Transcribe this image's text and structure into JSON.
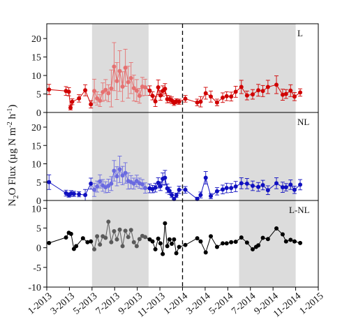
{
  "chart_data": {
    "type": "line",
    "ylabel": "N2O Flux (µg N m-2 h-1)",
    "ylabel_parts": {
      "main": "N",
      "sub": "2",
      "rest": "O Flux (µg N m",
      "sup1": "-2",
      "mid": " h",
      "sup2": "-1",
      "end": ")"
    },
    "x_ticks": [
      "1-2013",
      "3-2013",
      "5-2013",
      "7-2013",
      "9-2013",
      "11-2013",
      "1-2014",
      "3-2014",
      "5-2014",
      "7-2014",
      "9-2014",
      "11-2014",
      "1-2015"
    ],
    "shaded_periods": [
      [
        4,
        9
      ],
      [
        17,
        22
      ]
    ],
    "divider_x": 12,
    "panels": [
      {
        "label": "L",
        "ylim": [
          0,
          24
        ],
        "yticks": [
          "0",
          "5",
          "10",
          "15",
          "20"
        ],
        "ytick_values": [
          0,
          5,
          10,
          15,
          20
        ],
        "colors": {
          "dark": "#d00000",
          "light": "#e67070"
        },
        "light_range": [
          4,
          9
        ],
        "series": [
          {
            "x": 0.2,
            "y": 6.2,
            "e": 1.4
          },
          {
            "x": 1.7,
            "y": 5.8,
            "e": 1.2
          },
          {
            "x": 1.95,
            "y": 5.6,
            "e": 1.1
          },
          {
            "x": 2.1,
            "y": 1.3,
            "e": 0.6
          },
          {
            "x": 2.25,
            "y": 2.9,
            "e": 0.8
          },
          {
            "x": 2.85,
            "y": 3.8,
            "e": 1.0
          },
          {
            "x": 3.4,
            "y": 6.0,
            "e": 1.5
          },
          {
            "x": 3.9,
            "y": 2.2,
            "e": 1.0
          },
          {
            "x": 4.2,
            "y": 5.8,
            "e": 3.2
          },
          {
            "x": 4.45,
            "y": 3.8,
            "e": 1.8
          },
          {
            "x": 4.7,
            "y": 3.2,
            "e": 1.6
          },
          {
            "x": 4.95,
            "y": 5.5,
            "e": 2.5
          },
          {
            "x": 5.2,
            "y": 6.1,
            "e": 2.8
          },
          {
            "x": 5.45,
            "y": 5.2,
            "e": 2.3
          },
          {
            "x": 5.7,
            "y": 6.5,
            "e": 5.0
          },
          {
            "x": 5.95,
            "y": 12.4,
            "e": 6.5
          },
          {
            "x": 6.2,
            "y": 8.5,
            "e": 5.0
          },
          {
            "x": 6.45,
            "y": 11.2,
            "e": 5.5
          },
          {
            "x": 6.7,
            "y": 7.0,
            "e": 4.0
          },
          {
            "x": 6.95,
            "y": 12.1,
            "e": 5.0
          },
          {
            "x": 7.2,
            "y": 8.2,
            "e": 4.3
          },
          {
            "x": 7.45,
            "y": 9.3,
            "e": 4.2
          },
          {
            "x": 7.7,
            "y": 6.6,
            "e": 3.5
          },
          {
            "x": 7.95,
            "y": 5.9,
            "e": 3.0
          },
          {
            "x": 8.2,
            "y": 4.5,
            "e": 2.0
          },
          {
            "x": 8.45,
            "y": 7.0,
            "e": 2.5
          },
          {
            "x": 8.7,
            "y": 6.8,
            "e": 2.2
          },
          {
            "x": 9.1,
            "y": 5.9,
            "e": 1.3
          },
          {
            "x": 9.35,
            "y": 4.5,
            "e": 1.1
          },
          {
            "x": 9.6,
            "y": 3.0,
            "e": 1.4
          },
          {
            "x": 9.85,
            "y": 6.8,
            "e": 2.0
          },
          {
            "x": 10.05,
            "y": 4.6,
            "e": 1.3
          },
          {
            "x": 10.25,
            "y": 5.8,
            "e": 1.4
          },
          {
            "x": 10.45,
            "y": 6.4,
            "e": 1.4
          },
          {
            "x": 10.65,
            "y": 3.6,
            "e": 1.0
          },
          {
            "x": 10.85,
            "y": 3.6,
            "e": 0.9
          },
          {
            "x": 11.05,
            "y": 3.3,
            "e": 0.9
          },
          {
            "x": 11.25,
            "y": 2.6,
            "e": 0.7
          },
          {
            "x": 11.45,
            "y": 3.0,
            "e": 0.7
          },
          {
            "x": 11.7,
            "y": 2.9,
            "e": 0.7
          },
          {
            "x": 12.25,
            "y": 3.7,
            "e": 0.9
          },
          {
            "x": 13.3,
            "y": 2.7,
            "e": 0.9
          },
          {
            "x": 13.6,
            "y": 2.9,
            "e": 1.4
          },
          {
            "x": 14.05,
            "y": 5.2,
            "e": 1.6
          },
          {
            "x": 14.5,
            "y": 4.3,
            "e": 1.5
          },
          {
            "x": 15.05,
            "y": 2.7,
            "e": 0.9
          },
          {
            "x": 15.55,
            "y": 4.0,
            "e": 1.3
          },
          {
            "x": 15.9,
            "y": 4.4,
            "e": 1.2
          },
          {
            "x": 16.3,
            "y": 4.3,
            "e": 1.2
          },
          {
            "x": 16.7,
            "y": 5.6,
            "e": 1.5
          },
          {
            "x": 17.2,
            "y": 6.9,
            "e": 1.8
          },
          {
            "x": 17.7,
            "y": 4.6,
            "e": 1.2
          },
          {
            "x": 18.2,
            "y": 4.9,
            "e": 1.3
          },
          {
            "x": 18.7,
            "y": 6.0,
            "e": 1.6
          },
          {
            "x": 19.1,
            "y": 5.8,
            "e": 1.5
          },
          {
            "x": 19.55,
            "y": 6.9,
            "e": 1.8
          },
          {
            "x": 20.3,
            "y": 7.5,
            "e": 2.4
          },
          {
            "x": 20.85,
            "y": 4.8,
            "e": 1.5
          },
          {
            "x": 21.15,
            "y": 5.0,
            "e": 1.2
          },
          {
            "x": 21.55,
            "y": 5.9,
            "e": 1.6
          },
          {
            "x": 21.9,
            "y": 4.3,
            "e": 1.1
          },
          {
            "x": 22.4,
            "y": 5.4,
            "e": 1.0
          }
        ]
      },
      {
        "label": "NL",
        "ylim": [
          0,
          24
        ],
        "yticks": [
          "0",
          "5",
          "10",
          "15",
          "20"
        ],
        "ytick_values": [
          0,
          5,
          10,
          15,
          20
        ],
        "colors": {
          "dark": "#1010c0",
          "light": "#6a6ae0"
        },
        "light_range": [
          4,
          9
        ],
        "series": [
          {
            "x": 0.2,
            "y": 5.0,
            "e": 2.0
          },
          {
            "x": 1.7,
            "y": 2.0,
            "e": 0.8
          },
          {
            "x": 1.95,
            "y": 1.5,
            "e": 0.6
          },
          {
            "x": 2.15,
            "y": 1.9,
            "e": 0.8
          },
          {
            "x": 2.4,
            "y": 1.8,
            "e": 0.7
          },
          {
            "x": 2.85,
            "y": 1.7,
            "e": 0.7
          },
          {
            "x": 3.4,
            "y": 1.5,
            "e": 1.5
          },
          {
            "x": 3.9,
            "y": 4.6,
            "e": 1.5
          },
          {
            "x": 4.2,
            "y": 2.9,
            "e": 1.8
          },
          {
            "x": 4.45,
            "y": 3.8,
            "e": 1.5
          },
          {
            "x": 4.7,
            "y": 5.2,
            "e": 1.8
          },
          {
            "x": 4.95,
            "y": 4.1,
            "e": 1.6
          },
          {
            "x": 5.2,
            "y": 3.6,
            "e": 1.5
          },
          {
            "x": 5.45,
            "y": 4.0,
            "e": 1.8
          },
          {
            "x": 5.7,
            "y": 4.6,
            "e": 1.9
          },
          {
            "x": 5.95,
            "y": 8.1,
            "e": 2.8
          },
          {
            "x": 6.2,
            "y": 6.6,
            "e": 2.6
          },
          {
            "x": 6.45,
            "y": 8.5,
            "e": 3.6
          },
          {
            "x": 6.7,
            "y": 6.8,
            "e": 2.5
          },
          {
            "x": 6.95,
            "y": 7.5,
            "e": 2.8
          },
          {
            "x": 7.2,
            "y": 5.3,
            "e": 2.2
          },
          {
            "x": 7.45,
            "y": 5.0,
            "e": 1.8
          },
          {
            "x": 7.7,
            "y": 4.6,
            "e": 1.5
          },
          {
            "x": 7.95,
            "y": 5.3,
            "e": 1.6
          },
          {
            "x": 8.2,
            "y": 4.7,
            "e": 1.4
          },
          {
            "x": 8.45,
            "y": 4.4,
            "e": 1.3
          },
          {
            "x": 8.7,
            "y": 3.4,
            "e": 1.4
          },
          {
            "x": 9.1,
            "y": 3.3,
            "e": 1.2
          },
          {
            "x": 9.35,
            "y": 3.1,
            "e": 1.0
          },
          {
            "x": 9.6,
            "y": 3.5,
            "e": 1.2
          },
          {
            "x": 9.85,
            "y": 4.8,
            "e": 1.4
          },
          {
            "x": 10.05,
            "y": 3.9,
            "e": 1.2
          },
          {
            "x": 10.25,
            "y": 5.9,
            "e": 1.6
          },
          {
            "x": 10.45,
            "y": 6.2,
            "e": 2.0
          },
          {
            "x": 10.65,
            "y": 3.3,
            "e": 1.2
          },
          {
            "x": 10.85,
            "y": 2.6,
            "e": 1.0
          },
          {
            "x": 11.05,
            "y": 1.5,
            "e": 0.7
          },
          {
            "x": 11.25,
            "y": 0.4,
            "e": 0.4
          },
          {
            "x": 11.45,
            "y": 1.4,
            "e": 0.6
          },
          {
            "x": 11.7,
            "y": 2.9,
            "e": 1.0
          },
          {
            "x": 12.25,
            "y": 2.9,
            "e": 0.9
          },
          {
            "x": 13.3,
            "y": 0.4,
            "e": 0.5
          },
          {
            "x": 13.6,
            "y": 1.5,
            "e": 0.8
          },
          {
            "x": 14.05,
            "y": 6.2,
            "e": 1.7
          },
          {
            "x": 14.5,
            "y": 1.2,
            "e": 0.7
          },
          {
            "x": 15.05,
            "y": 2.5,
            "e": 1.0
          },
          {
            "x": 15.55,
            "y": 3.0,
            "e": 1.2
          },
          {
            "x": 15.9,
            "y": 3.4,
            "e": 1.3
          },
          {
            "x": 16.3,
            "y": 3.4,
            "e": 1.2
          },
          {
            "x": 16.7,
            "y": 3.8,
            "e": 1.4
          },
          {
            "x": 17.2,
            "y": 4.7,
            "e": 1.5
          },
          {
            "x": 17.7,
            "y": 4.6,
            "e": 1.4
          },
          {
            "x": 18.2,
            "y": 4.0,
            "e": 1.3
          },
          {
            "x": 18.7,
            "y": 3.7,
            "e": 1.2
          },
          {
            "x": 19.1,
            "y": 4.2,
            "e": 1.3
          },
          {
            "x": 19.55,
            "y": 2.8,
            "e": 1.2
          },
          {
            "x": 20.3,
            "y": 4.7,
            "e": 1.5
          },
          {
            "x": 20.85,
            "y": 3.6,
            "e": 1.4
          },
          {
            "x": 21.15,
            "y": 3.6,
            "e": 1.0
          },
          {
            "x": 21.55,
            "y": 4.3,
            "e": 1.3
          },
          {
            "x": 21.9,
            "y": 2.9,
            "e": 1.0
          },
          {
            "x": 22.4,
            "y": 4.3,
            "e": 1.4
          }
        ]
      },
      {
        "label": "L-NL",
        "ylim": [
          -10,
          12
        ],
        "yticks": [
          "-10",
          "-5",
          "0",
          "5",
          "10"
        ],
        "ytick_values": [
          -10,
          -5,
          0,
          5,
          10
        ],
        "colors": {
          "dark": "#000000",
          "light": "#5a5a5a"
        },
        "light_range": [
          4,
          9
        ],
        "series": [
          {
            "x": 0.2,
            "y": 1.2
          },
          {
            "x": 1.7,
            "y": 2.6
          },
          {
            "x": 1.95,
            "y": 3.8
          },
          {
            "x": 2.15,
            "y": 3.5
          },
          {
            "x": 2.4,
            "y": -0.3
          },
          {
            "x": 2.6,
            "y": 0.4
          },
          {
            "x": 3.2,
            "y": 2.4
          },
          {
            "x": 3.6,
            "y": 1.4
          },
          {
            "x": 3.9,
            "y": 1.6
          },
          {
            "x": 4.2,
            "y": -0.4
          },
          {
            "x": 4.45,
            "y": 2.9
          },
          {
            "x": 4.7,
            "y": 0.8
          },
          {
            "x": 4.95,
            "y": 2.9
          },
          {
            "x": 5.2,
            "y": 2.5
          },
          {
            "x": 5.45,
            "y": 6.6
          },
          {
            "x": 5.7,
            "y": 1.4
          },
          {
            "x": 5.95,
            "y": 4.2
          },
          {
            "x": 6.2,
            "y": 2.1
          },
          {
            "x": 6.45,
            "y": 4.6
          },
          {
            "x": 6.7,
            "y": 0.4
          },
          {
            "x": 6.95,
            "y": 4.3
          },
          {
            "x": 7.2,
            "y": 2.7
          },
          {
            "x": 7.45,
            "y": 4.5
          },
          {
            "x": 7.7,
            "y": 1.4
          },
          {
            "x": 7.95,
            "y": 0.4
          },
          {
            "x": 8.2,
            "y": 2.2
          },
          {
            "x": 8.45,
            "y": 3.0
          },
          {
            "x": 8.7,
            "y": 2.7
          },
          {
            "x": 9.1,
            "y": 2.1
          },
          {
            "x": 9.35,
            "y": 1.6
          },
          {
            "x": 9.6,
            "y": -0.4
          },
          {
            "x": 9.85,
            "y": 2.3
          },
          {
            "x": 10.05,
            "y": 1.1
          },
          {
            "x": 10.25,
            "y": -1.6
          },
          {
            "x": 10.45,
            "y": 6.2
          },
          {
            "x": 10.65,
            "y": 0.4
          },
          {
            "x": 10.85,
            "y": 2.1
          },
          {
            "x": 11.05,
            "y": 1.0
          },
          {
            "x": 11.25,
            "y": 2.1
          },
          {
            "x": 11.45,
            "y": -1.4
          },
          {
            "x": 11.7,
            "y": 0.2
          },
          {
            "x": 12.25,
            "y": 0.7
          },
          {
            "x": 13.3,
            "y": 2.4
          },
          {
            "x": 13.6,
            "y": 1.6
          },
          {
            "x": 14.05,
            "y": -1.2
          },
          {
            "x": 14.5,
            "y": 2.9
          },
          {
            "x": 15.05,
            "y": 0.2
          },
          {
            "x": 15.55,
            "y": 1.1
          },
          {
            "x": 15.9,
            "y": 1.1
          },
          {
            "x": 16.3,
            "y": 1.4
          },
          {
            "x": 16.7,
            "y": 1.5
          },
          {
            "x": 17.2,
            "y": 2.6
          },
          {
            "x": 17.7,
            "y": 1.3
          },
          {
            "x": 18.2,
            "y": -0.4
          },
          {
            "x": 18.5,
            "y": 0.2
          },
          {
            "x": 18.7,
            "y": 0.6
          },
          {
            "x": 19.1,
            "y": 2.5
          },
          {
            "x": 19.55,
            "y": 2.2
          },
          {
            "x": 20.3,
            "y": 4.9
          },
          {
            "x": 20.85,
            "y": 3.4
          },
          {
            "x": 21.15,
            "y": 1.6
          },
          {
            "x": 21.55,
            "y": 2.0
          },
          {
            "x": 21.9,
            "y": 1.6
          },
          {
            "x": 22.4,
            "y": 1.2
          }
        ]
      }
    ]
  }
}
